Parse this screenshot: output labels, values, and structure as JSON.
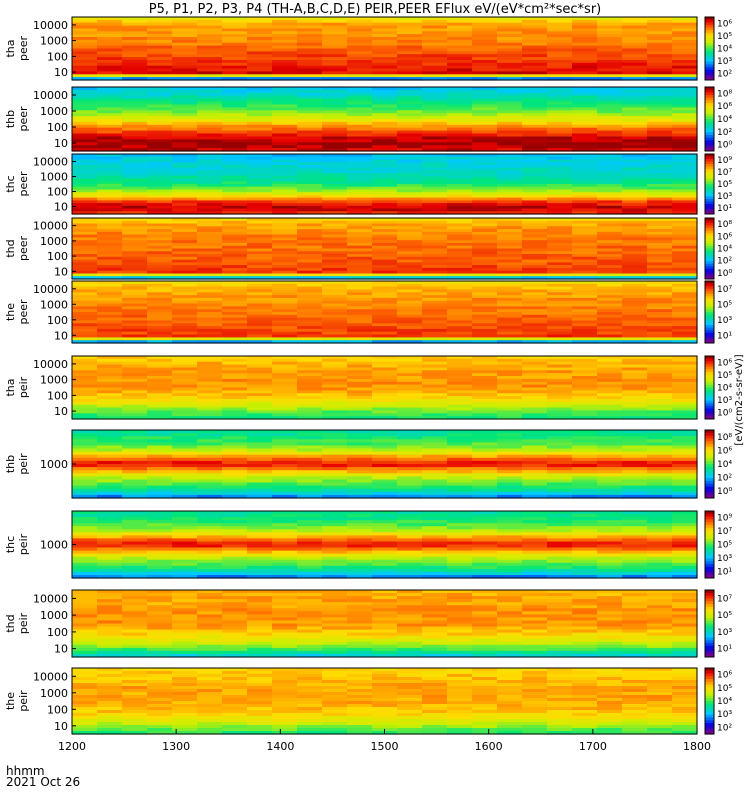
{
  "title": "P5, P1, P2, P3, P4 (TH-A,B,C,D,E) PEIR,PEER EFlux eV/(eV*cm²*sec*sr)",
  "footer": {
    "line1": "hhmm",
    "line2": "2021 Oct 26"
  },
  "chart_data": {
    "type": "heatmap",
    "x_label": "hhmm",
    "x_ticks": [
      "1200",
      "1300",
      "1400",
      "1500",
      "1600",
      "1700",
      "1800"
    ],
    "x_range": [
      1200,
      1800
    ],
    "colorscale": "rainbow (violet-blue-cyan-green-yellow-red)",
    "colorbar_unit": "[eV/(cm2-s-sr-eV)]",
    "panels": [
      {
        "label_top": "tha",
        "label_bottom": "peer",
        "y_ticks": [
          "10000",
          "1000",
          "100",
          "10"
        ],
        "y_scale": "log",
        "cb_ticks": [
          "10⁶",
          "10⁵",
          "10⁴",
          "10³",
          "10²"
        ]
      },
      {
        "label_top": "thb",
        "label_bottom": "peer",
        "y_ticks": [
          "10000",
          "1000",
          "100",
          "10"
        ],
        "y_scale": "log",
        "cb_ticks": [
          "10⁸",
          "10⁶",
          "10⁴",
          "10²",
          "10⁰"
        ]
      },
      {
        "label_top": "thc",
        "label_bottom": "peer",
        "y_ticks": [
          "10000",
          "1000",
          "100",
          "10"
        ],
        "y_scale": "log",
        "cb_ticks": [
          "10⁹",
          "10⁷",
          "10⁵",
          "10³",
          "10¹"
        ]
      },
      {
        "label_top": "thd",
        "label_bottom": "peer",
        "y_ticks": [
          "10000",
          "1000",
          "100",
          "10"
        ],
        "y_scale": "log",
        "cb_ticks": [
          "10⁸",
          "10⁶",
          "10⁴",
          "10²",
          "10⁰"
        ]
      },
      {
        "label_top": "the",
        "label_bottom": "peer",
        "y_ticks": [
          "10000",
          "1000",
          "100",
          "10"
        ],
        "y_scale": "log",
        "cb_ticks": [
          "10⁷",
          "10⁵",
          "10³",
          "10¹"
        ]
      },
      {
        "label_top": "tha",
        "label_bottom": "peir",
        "y_ticks": [
          "10000",
          "1000",
          "100",
          "10"
        ],
        "y_scale": "log",
        "cb_ticks": [
          "10⁶",
          "10⁵",
          "10⁴",
          "10³",
          "10⁰"
        ]
      },
      {
        "label_top": "thb",
        "label_bottom": "peir",
        "y_ticks": [
          "1000"
        ],
        "y_scale": "log",
        "cb_ticks": [
          "10⁸",
          "10⁶",
          "10⁴",
          "10²",
          "10⁰"
        ]
      },
      {
        "label_top": "thc",
        "label_bottom": "peir",
        "y_ticks": [
          "1000"
        ],
        "y_scale": "log",
        "cb_ticks": [
          "10⁹",
          "10⁷",
          "10⁵",
          "10³",
          "10¹"
        ]
      },
      {
        "label_top": "thd",
        "label_bottom": "peir",
        "y_ticks": [
          "10000",
          "1000",
          "100",
          "10"
        ],
        "y_scale": "log",
        "cb_ticks": [
          "10⁷",
          "10⁵",
          "10³",
          "10¹"
        ]
      },
      {
        "label_top": "the",
        "label_bottom": "peir",
        "y_ticks": [
          "10000",
          "1000",
          "100",
          "10"
        ],
        "y_scale": "log",
        "cb_ticks": [
          "10⁶",
          "10⁵",
          "10⁴",
          "10³",
          "10²"
        ]
      }
    ]
  }
}
